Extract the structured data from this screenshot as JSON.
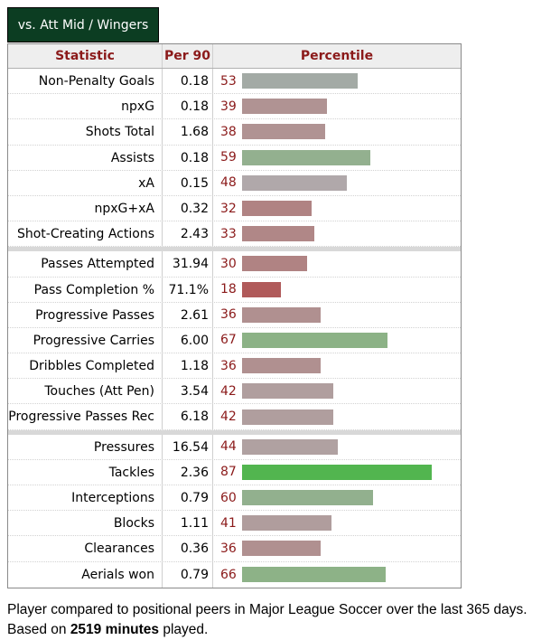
{
  "tab": {
    "label": "vs. Att Mid / Wingers"
  },
  "table": {
    "headers": {
      "statistic": "Statistic",
      "per90": "Per 90",
      "percentile": "Percentile"
    },
    "groups": [
      [
        {
          "stat": "Non-Penalty Goals",
          "per90": "0.18",
          "percentile": 53,
          "color": "#a3aaa5"
        },
        {
          "stat": "npxG",
          "per90": "0.18",
          "percentile": 39,
          "color": "#b09393"
        },
        {
          "stat": "Shots Total",
          "per90": "1.68",
          "percentile": 38,
          "color": "#b09393"
        },
        {
          "stat": "Assists",
          "per90": "0.18",
          "percentile": 59,
          "color": "#93b08f"
        },
        {
          "stat": "xA",
          "per90": "0.15",
          "percentile": 48,
          "color": "#b0a8aa"
        },
        {
          "stat": "npxG+xA",
          "per90": "0.32",
          "percentile": 32,
          "color": "#b08383"
        },
        {
          "stat": "Shot-Creating Actions",
          "per90": "2.43",
          "percentile": 33,
          "color": "#b08787"
        }
      ],
      [
        {
          "stat": "Passes Attempted",
          "per90": "31.94",
          "percentile": 30,
          "color": "#b08383"
        },
        {
          "stat": "Pass Completion %",
          "per90": "71.1%",
          "percentile": 18,
          "color": "#b05a5a"
        },
        {
          "stat": "Progressive Passes",
          "per90": "2.61",
          "percentile": 36,
          "color": "#b09090"
        },
        {
          "stat": "Progressive Carries",
          "per90": "6.00",
          "percentile": 67,
          "color": "#8cb286"
        },
        {
          "stat": "Dribbles Completed",
          "per90": "1.18",
          "percentile": 36,
          "color": "#b09090"
        },
        {
          "stat": "Touches (Att Pen)",
          "per90": "3.54",
          "percentile": 42,
          "color": "#b09e9e"
        },
        {
          "stat": "Progressive Passes Rec",
          "per90": "6.18",
          "percentile": 42,
          "color": "#b09e9e"
        }
      ],
      [
        {
          "stat": "Pressures",
          "per90": "16.54",
          "percentile": 44,
          "color": "#b0a1a1"
        },
        {
          "stat": "Tackles",
          "per90": "2.36",
          "percentile": 87,
          "color": "#52b54f"
        },
        {
          "stat": "Interceptions",
          "per90": "0.79",
          "percentile": 60,
          "color": "#92b08e"
        },
        {
          "stat": "Blocks",
          "per90": "1.11",
          "percentile": 41,
          "color": "#b09d9d"
        },
        {
          "stat": "Clearances",
          "per90": "0.36",
          "percentile": 36,
          "color": "#b09090"
        },
        {
          "stat": "Aerials won",
          "per90": "0.79",
          "percentile": 66,
          "color": "#8db287"
        }
      ]
    ]
  },
  "footer": {
    "text_before": "Player compared to positional peers in Major League Soccer over the last 365 days. Based on ",
    "minutes": "2519 minutes",
    "text_after": " played."
  }
}
